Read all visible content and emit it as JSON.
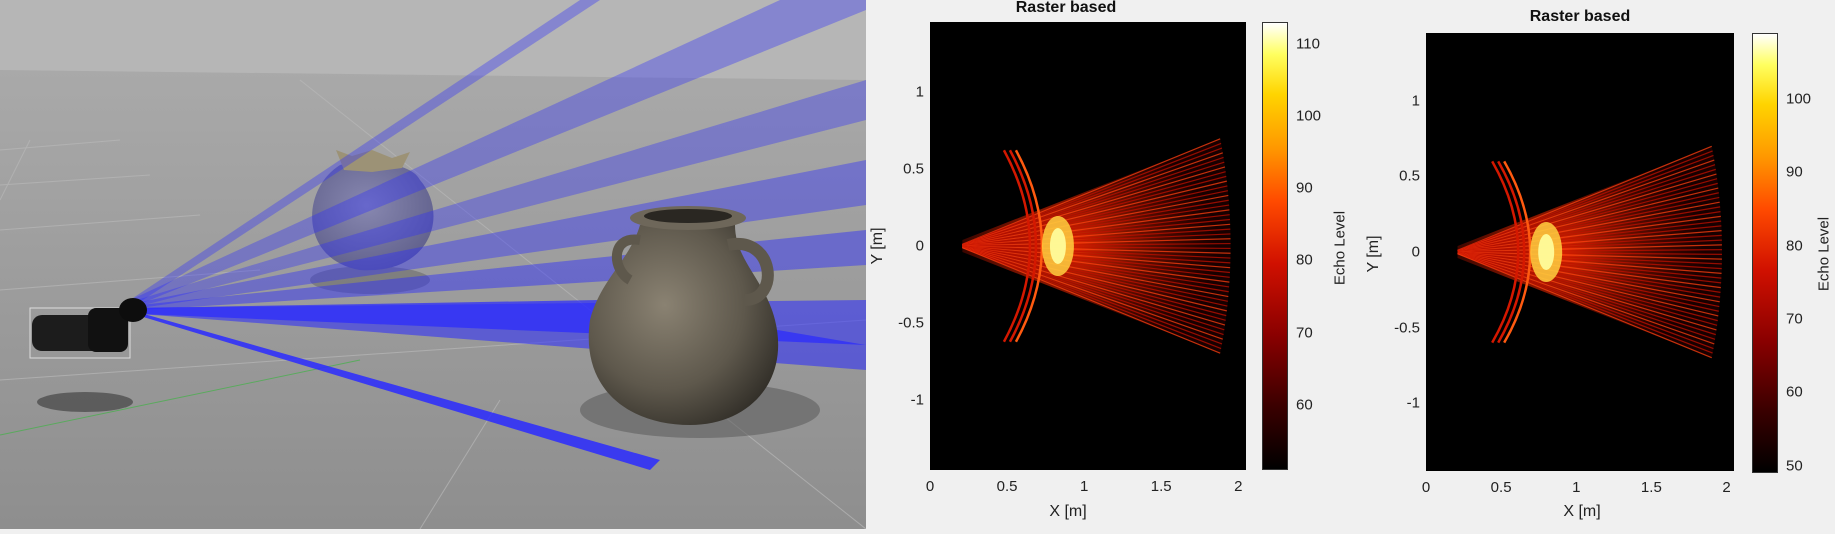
{
  "scene": {
    "description_icons": [
      "sonar-sensor-icon",
      "sack-object-icon",
      "jug-object-icon"
    ],
    "colors": {
      "floor": "#9a9a9a",
      "sky": "#b4b4b4",
      "beams": "#2a2aff"
    }
  },
  "chart_data": [
    {
      "type": "heatmap",
      "title": "Raster based",
      "xlabel": "X [m]",
      "ylabel": "Y [m]",
      "colorbar_label": "Echo Level",
      "colormap": "hot",
      "xlim": [
        0,
        2.05
      ],
      "ylim": [
        -1.45,
        1.45
      ],
      "clim": [
        51,
        113
      ],
      "xticks": [
        0,
        0.5,
        1,
        1.5,
        2
      ],
      "xtick_labels": [
        "0",
        "0.5",
        "1",
        "1.5",
        "2"
      ],
      "yticks": [
        1,
        0.5,
        0,
        -0.5,
        -1
      ],
      "ytick_labels": [
        "1",
        "0.5",
        "0",
        "-0.5",
        "-1"
      ],
      "cticks": [
        110,
        100,
        90,
        80,
        70,
        60
      ],
      "ctick_labels": [
        "110",
        "100",
        "90",
        "80",
        "70",
        "60"
      ],
      "fan": {
        "x_start": 0.21,
        "x_end": 1.95,
        "half_angle_deg": 16,
        "peak_x": 0.83
      },
      "arc": {
        "x_center": 0.83,
        "y_extent": [
          -0.62,
          0.62
        ]
      }
    },
    {
      "type": "heatmap",
      "title": "Raster based",
      "xlabel": "X [m]",
      "ylabel": "Y [m]",
      "colorbar_label": "Echo Level",
      "colormap": "hot",
      "xlim": [
        0,
        2.05
      ],
      "ylim": [
        -1.45,
        1.45
      ],
      "clim": [
        49,
        109
      ],
      "xticks": [
        0,
        0.5,
        1,
        1.5,
        2
      ],
      "xtick_labels": [
        "0",
        "0.5",
        "1",
        "1.5",
        "2"
      ],
      "yticks": [
        1,
        0.5,
        0,
        -0.5,
        -1
      ],
      "ytick_labels": [
        "1",
        "0.5",
        "0",
        "-0.5",
        "-1"
      ],
      "cticks": [
        100,
        90,
        80,
        70,
        60,
        50
      ],
      "ctick_labels": [
        "100",
        "90",
        "80",
        "70",
        "60",
        "50"
      ],
      "fan": {
        "x_start": 0.21,
        "x_end": 1.97,
        "half_angle_deg": 16,
        "peak_x": 0.8
      },
      "arc": {
        "x_center": 0.8,
        "y_extent": [
          -0.6,
          0.6
        ]
      }
    }
  ]
}
